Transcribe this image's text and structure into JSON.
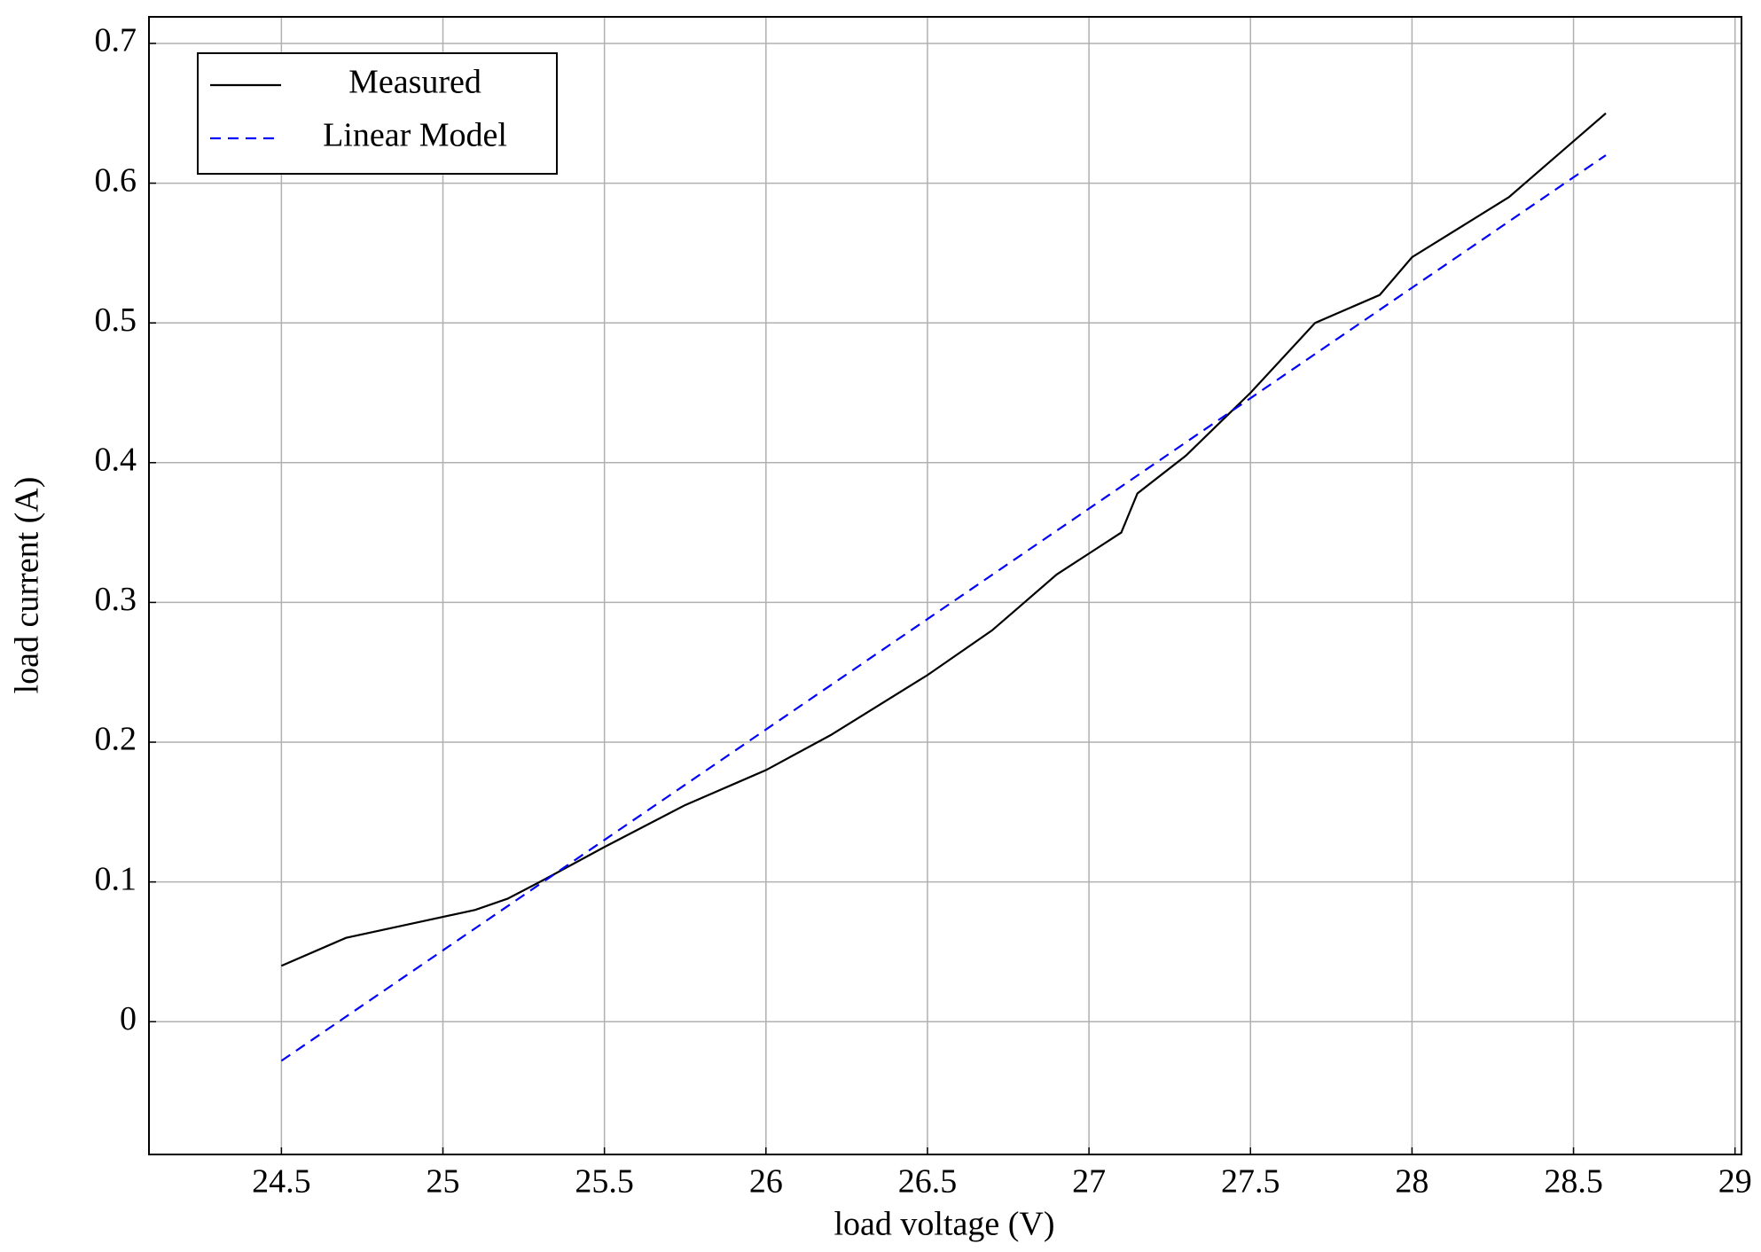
{
  "chart_data": {
    "type": "line",
    "xlabel": "load voltage (V)",
    "ylabel": "load current (A)",
    "xlim": [
      24.09,
      29.02
    ],
    "ylim": [
      -0.095,
      0.719
    ],
    "xticks": [
      24.5,
      25,
      25.5,
      26,
      26.5,
      27,
      27.5,
      28,
      28.5,
      29
    ],
    "yticks": [
      0,
      0.1,
      0.2,
      0.3,
      0.4,
      0.5,
      0.6,
      0.7
    ],
    "grid": true,
    "legend": "upper left",
    "series": [
      {
        "name": "Measured",
        "color": "#000000",
        "dash": "solid",
        "x": [
          24.5,
          24.7,
          24.9,
          25.1,
          25.2,
          25.3,
          25.5,
          25.75,
          25.9,
          26.0,
          26.2,
          26.5,
          26.7,
          26.9,
          27.0,
          27.1,
          27.15,
          27.3,
          27.5,
          27.7,
          27.9,
          28.0,
          28.3,
          28.6
        ],
        "values": [
          0.04,
          0.06,
          0.07,
          0.08,
          0.088,
          0.1,
          0.125,
          0.155,
          0.17,
          0.18,
          0.205,
          0.248,
          0.28,
          0.32,
          0.335,
          0.35,
          0.378,
          0.405,
          0.45,
          0.5,
          0.52,
          0.547,
          0.59,
          0.65
        ]
      },
      {
        "name": "Linear Model",
        "color": "#0000ff",
        "dash": "dashed",
        "x": [
          24.5,
          28.6
        ],
        "values": [
          -0.028,
          0.62
        ]
      }
    ]
  }
}
